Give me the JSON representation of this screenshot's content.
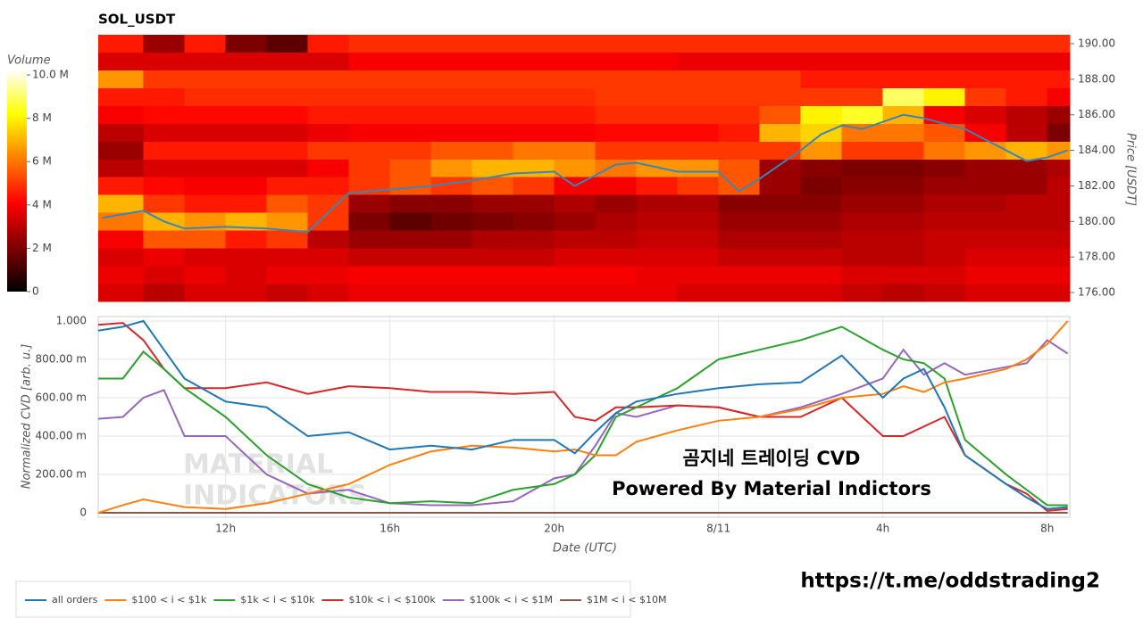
{
  "chart_data": [
    {
      "type": "heatmap",
      "title": "SOL_USDT",
      "ylabel": "Price [USDT]",
      "xlim": [
        8.9,
        32.55
      ],
      "ylim": [
        175.5,
        190.5
      ],
      "yticks": [
        {
          "value": 176,
          "label": "176.00"
        },
        {
          "value": 178,
          "label": "178.00"
        },
        {
          "value": 180,
          "label": "180.00"
        },
        {
          "value": 182,
          "label": "182.00"
        },
        {
          "value": 184,
          "label": "184.00"
        },
        {
          "value": 186,
          "label": "186.00"
        },
        {
          "value": 188,
          "label": "188.00"
        },
        {
          "value": 190,
          "label": "190.00"
        }
      ],
      "x_bins": [
        8.9,
        10,
        11,
        12,
        13,
        14,
        15,
        16,
        17,
        18,
        19,
        20,
        21,
        22,
        23,
        24,
        25,
        26,
        27,
        28,
        29,
        30,
        31,
        32,
        32.55
      ],
      "y_bins": [
        175.5,
        176.5,
        177.5,
        178.5,
        179.5,
        180.5,
        181.5,
        182.5,
        183.5,
        184.5,
        185.5,
        186.5,
        187.5,
        188.5,
        189.5,
        190.5
      ],
      "z": [
        [
          3.5,
          3,
          3.5,
          3.5,
          3.2,
          3.5,
          3.8,
          3.8,
          3.8,
          3.8,
          3.8,
          3.8,
          3.8,
          3.8,
          3.5,
          3.5,
          3.5,
          3.5,
          3.2,
          3,
          3.2,
          3.5,
          3.5,
          3.5
        ],
        [
          3.8,
          3.5,
          3.8,
          3.5,
          3.8,
          3.8,
          4,
          4,
          4,
          4,
          4,
          4,
          4,
          3.8,
          3.8,
          3.8,
          3.8,
          3.8,
          3.5,
          3.5,
          3.5,
          3.8,
          3.8,
          3.8
        ],
        [
          3.5,
          3.8,
          3.5,
          3.5,
          3.5,
          3.5,
          3.2,
          3.2,
          3.2,
          3.2,
          3.2,
          3.5,
          3.5,
          3.5,
          3.5,
          3.2,
          3.2,
          3.2,
          3,
          3,
          3.2,
          3.5,
          3.5,
          3.5
        ],
        [
          4,
          5.5,
          5.5,
          4.5,
          5,
          3,
          2.5,
          2.5,
          2.5,
          2.8,
          2.8,
          3,
          3,
          3.2,
          3.2,
          2.8,
          2.8,
          2.8,
          3,
          3,
          3.2,
          3.2,
          3.2,
          3.2
        ],
        [
          6,
          7,
          6.5,
          7,
          6.5,
          5,
          2,
          1.5,
          1.8,
          2,
          2.2,
          2.5,
          2.8,
          3,
          3,
          2.5,
          2.5,
          2.5,
          2.8,
          2.8,
          3,
          3,
          3,
          3
        ],
        [
          7,
          5,
          4.5,
          4.5,
          5.5,
          5,
          2.5,
          2.2,
          2.2,
          2.5,
          2.5,
          2.8,
          2.5,
          2.8,
          2.8,
          2.2,
          2.2,
          2.2,
          2.5,
          2.5,
          2.8,
          2.8,
          3,
          3
        ],
        [
          4.5,
          4.2,
          4,
          4,
          4.5,
          4.5,
          5,
          5.5,
          5,
          5.5,
          5,
          4,
          4,
          4.5,
          5,
          5.5,
          2.5,
          2,
          2.2,
          2.2,
          2.5,
          2.5,
          2.5,
          3
        ],
        [
          3,
          3.5,
          3.5,
          3.5,
          3.5,
          4,
          5,
          5.5,
          6.5,
          7,
          7,
          6.5,
          6,
          6.5,
          6.5,
          5.5,
          2.5,
          2.2,
          2,
          2,
          2.2,
          2.5,
          2.5,
          2.8
        ],
        [
          2.5,
          4.5,
          4.5,
          4.5,
          4.5,
          5,
          5,
          5,
          5.5,
          5.5,
          6,
          6,
          5,
          5,
          5,
          5,
          5,
          6.5,
          5,
          5,
          6,
          6.5,
          7,
          6.5
        ],
        [
          3,
          3.5,
          3.5,
          3.5,
          3.5,
          3.8,
          4,
          4,
          4,
          4,
          4,
          4,
          4.2,
          4.2,
          4.2,
          4.5,
          7,
          7.5,
          6,
          6,
          5.5,
          4,
          3,
          2
        ],
        [
          4,
          4.2,
          4.2,
          4.2,
          4.2,
          4.5,
          4.5,
          4.5,
          4.5,
          4.5,
          4.5,
          4.5,
          4.8,
          4.8,
          4.8,
          4.8,
          5.5,
          8,
          8.5,
          7,
          4,
          3.5,
          3,
          2.5
        ],
        [
          4.5,
          4.5,
          4.8,
          4.8,
          4.8,
          4.8,
          4.8,
          4.8,
          4.8,
          4.8,
          4.8,
          4.8,
          5,
          5,
          5,
          5,
          5,
          5,
          5,
          9,
          8,
          5,
          4.5,
          4
        ],
        [
          6.5,
          5,
          5,
          5,
          5,
          5,
          5,
          5,
          5,
          5,
          5,
          5,
          5,
          5,
          5,
          5,
          5,
          4.5,
          4.5,
          4.5,
          4.5,
          4.5,
          4.5,
          4.5
        ],
        [
          3.5,
          3.5,
          3.5,
          3.5,
          3.5,
          3.5,
          4,
          4,
          4,
          4,
          4,
          4,
          4,
          4,
          3.8,
          3.8,
          3.8,
          3.8,
          3.8,
          3.8,
          3.8,
          3.8,
          3.8,
          3.8
        ],
        [
          4.5,
          2.5,
          4.5,
          2,
          1.5,
          4.5,
          4.8,
          4.8,
          4.8,
          4.8,
          4.8,
          4.8,
          4.8,
          4.8,
          4.8,
          4.8,
          4.8,
          4.8,
          4.8,
          4.8,
          4.8,
          4.8,
          4.8,
          4.8
        ]
      ],
      "colorbar": {
        "title": "Volume",
        "lim": [
          0,
          10.25
        ],
        "ticks": [
          0,
          {
            "value": 2,
            "label": "2 M"
          },
          {
            "value": 4,
            "label": "4 M"
          },
          {
            "value": 6,
            "label": "6 M"
          },
          {
            "value": 8,
            "label": "8 M"
          },
          {
            "value": 10,
            "label": "10.0 M"
          }
        ]
      },
      "line": {
        "color": "#3a86b8",
        "x": [
          9,
          10,
          10.5,
          11,
          12,
          13,
          14,
          14.5,
          15,
          16,
          17,
          18,
          19,
          20,
          20.5,
          21,
          21.5,
          22,
          23,
          24,
          24.5,
          25,
          26,
          26.5,
          27,
          27.5,
          28,
          28.5,
          29,
          29.5,
          30,
          31,
          31.5,
          32,
          32.5
        ],
        "values": [
          180.2,
          180.6,
          180,
          179.6,
          179.7,
          179.6,
          179.4,
          180.5,
          181.6,
          181.8,
          182,
          182.3,
          182.7,
          182.8,
          182,
          182.6,
          183.2,
          183.3,
          182.8,
          182.8,
          181.7,
          182.4,
          184,
          184.9,
          185.4,
          185.2,
          185.6,
          186,
          185.8,
          185.5,
          185.2,
          184,
          183.4,
          183.6,
          184
        ]
      }
    },
    {
      "type": "line",
      "xlabel": "Date (UTC)",
      "ylabel": "Normalized CVD [arb. u.]",
      "grid": true,
      "legend": "bottom-left",
      "xlim": [
        8.9,
        32.55
      ],
      "ylim": [
        -0.023,
        1.023
      ],
      "xticks": [
        {
          "value": 12,
          "label": "12h"
        },
        {
          "value": 16,
          "label": "16h"
        },
        {
          "value": 20,
          "label": "20h"
        },
        {
          "value": 24,
          "label": "8/11"
        },
        {
          "value": 28,
          "label": "4h"
        },
        {
          "value": 32,
          "label": "8h"
        }
      ],
      "yticks": [
        0,
        {
          "value": 0.2,
          "label": "200.00 m"
        },
        {
          "value": 0.4,
          "label": "400.00 m"
        },
        {
          "value": 0.6,
          "label": "600.00 m"
        },
        {
          "value": 0.8,
          "label": "800.00 m"
        },
        {
          "value": 1,
          "label": "1.000"
        }
      ],
      "x": [
        8.9,
        9.5,
        10,
        10.5,
        11,
        12,
        13,
        14,
        15,
        16,
        17,
        18,
        19,
        20,
        20.5,
        21,
        21.5,
        22,
        23,
        24,
        25,
        26,
        27,
        28,
        28.5,
        29,
        29.5,
        30,
        31,
        31.5,
        32,
        32.5
      ],
      "series": [
        {
          "name": "all orders",
          "color": "#1f77b4",
          "values": [
            0.95,
            0.97,
            1,
            0.85,
            0.7,
            0.58,
            0.55,
            0.4,
            0.42,
            0.33,
            0.35,
            0.33,
            0.38,
            0.38,
            0.31,
            0.42,
            0.52,
            0.58,
            0.62,
            0.65,
            0.67,
            0.68,
            0.82,
            0.6,
            0.7,
            0.75,
            0.55,
            0.3,
            0.15,
            0.08,
            0.02,
            0.03
          ]
        },
        {
          "name": "$100 < i < $1k",
          "color": "#ff7f0e",
          "values": [
            0,
            0.04,
            0.07,
            0.05,
            0.03,
            0.02,
            0.05,
            0.1,
            0.15,
            0.25,
            0.32,
            0.35,
            0.34,
            0.32,
            0.33,
            0.3,
            0.3,
            0.37,
            0.43,
            0.48,
            0.5,
            0.54,
            0.6,
            0.62,
            0.66,
            0.63,
            0.68,
            0.7,
            0.75,
            0.8,
            0.88,
            1
          ]
        },
        {
          "name": "$1k < i < $10k",
          "color": "#2ca02c",
          "values": [
            0.7,
            0.7,
            0.84,
            0.75,
            0.65,
            0.5,
            0.3,
            0.15,
            0.08,
            0.05,
            0.06,
            0.05,
            0.12,
            0.15,
            0.2,
            0.3,
            0.5,
            0.55,
            0.65,
            0.8,
            0.85,
            0.9,
            0.97,
            0.85,
            0.8,
            0.78,
            0.7,
            0.38,
            0.2,
            0.12,
            0.04,
            0.04
          ]
        },
        {
          "name": "$10k < i < $100k",
          "color": "#d62728",
          "values": [
            0.98,
            0.99,
            0.9,
            0.75,
            0.65,
            0.65,
            0.68,
            0.62,
            0.66,
            0.65,
            0.63,
            0.63,
            0.62,
            0.63,
            0.5,
            0.48,
            0.55,
            0.55,
            0.56,
            0.55,
            0.5,
            0.5,
            0.6,
            0.4,
            0.4,
            0.45,
            0.5,
            0.3,
            0.15,
            0.1,
            0.01,
            0.02
          ]
        },
        {
          "name": "$100k < i < $1M",
          "color": "#9467bd",
          "values": [
            0.49,
            0.5,
            0.6,
            0.64,
            0.4,
            0.4,
            0.2,
            0.1,
            0.12,
            0.05,
            0.04,
            0.04,
            0.06,
            0.18,
            0.2,
            0.35,
            0.52,
            0.5,
            0.56,
            0.55,
            0.5,
            0.55,
            0.62,
            0.7,
            0.85,
            0.72,
            0.78,
            0.72,
            0.76,
            0.78,
            0.9,
            0.83
          ]
        },
        {
          "name": "$1M < i < $10M",
          "color": "#8c564b",
          "values": [
            0,
            0,
            0,
            0,
            0,
            0,
            0,
            0,
            0,
            0,
            0,
            0,
            0,
            0,
            0,
            0,
            0,
            0,
            0,
            0,
            0,
            0,
            0,
            0,
            0,
            0,
            0,
            0,
            0,
            0,
            0,
            0
          ]
        }
      ],
      "watermark": [
        "MATERIAL",
        "INDICATORS"
      ],
      "annotations": [
        "곰지네 트레이딩 CVD",
        "Powered By Material Indictors"
      ]
    }
  ],
  "link": "https://t.me/oddstrading2"
}
